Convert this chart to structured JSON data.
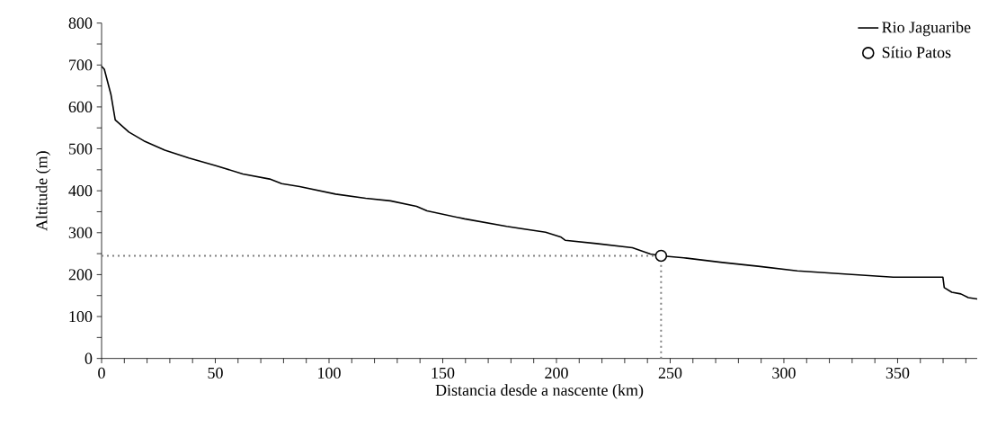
{
  "chart_data": {
    "type": "line",
    "xlabel": "Distancia desde a nascente (km)",
    "ylabel": "Altitude (m)",
    "xlim": [
      0,
      385
    ],
    "ylim": [
      0,
      800
    ],
    "xticks": [
      0,
      {
        "value": 10,
        "label": null
      },
      {
        "value": 20,
        "label": null
      },
      {
        "value": 30,
        "label": null
      },
      {
        "value": 40,
        "label": null
      },
      50,
      {
        "value": 60,
        "label": null
      },
      {
        "value": 70,
        "label": null
      },
      {
        "value": 80,
        "label": null
      },
      {
        "value": 90,
        "label": null
      },
      100,
      {
        "value": 110,
        "label": null
      },
      {
        "value": 120,
        "label": null
      },
      {
        "value": 130,
        "label": null
      },
      {
        "value": 140,
        "label": null
      },
      150,
      {
        "value": 160,
        "label": null
      },
      {
        "value": 170,
        "label": null
      },
      {
        "value": 180,
        "label": null
      },
      {
        "value": 190,
        "label": null
      },
      200,
      {
        "value": 210,
        "label": null
      },
      {
        "value": 220,
        "label": null
      },
      {
        "value": 230,
        "label": null
      },
      {
        "value": 240,
        "label": null
      },
      250,
      {
        "value": 260,
        "label": null
      },
      {
        "value": 270,
        "label": null
      },
      {
        "value": 280,
        "label": null
      },
      {
        "value": 290,
        "label": null
      },
      300,
      {
        "value": 310,
        "label": null
      },
      {
        "value": 320,
        "label": null
      },
      {
        "value": 330,
        "label": null
      },
      {
        "value": 340,
        "label": null
      },
      350,
      {
        "value": 360,
        "label": null
      },
      {
        "value": 370,
        "label": null
      },
      {
        "value": 380,
        "label": null
      }
    ],
    "yticks": [
      0,
      {
        "value": 50,
        "label": null
      },
      100,
      {
        "value": 150,
        "label": null
      },
      200,
      {
        "value": 250,
        "label": null
      },
      300,
      {
        "value": 350,
        "label": null
      },
      400,
      {
        "value": 450,
        "label": null
      },
      500,
      {
        "value": 550,
        "label": null
      },
      600,
      {
        "value": 650,
        "label": null
      },
      700,
      {
        "value": 750,
        "label": null
      },
      800
    ],
    "legend": "top right",
    "grid": false,
    "series": [
      {
        "name": "Rio Jaguaribe",
        "color": "#000000",
        "marker": "none",
        "line_style": "solid",
        "x": [
          0,
          1.2,
          4.1,
          6.0,
          12.0,
          18.6,
          27.8,
          38.4,
          50.2,
          62.1,
          73.9,
          79.2,
          87.1,
          102.9,
          116.1,
          127,
          138.5,
          143.1,
          159.6,
          178.1,
          195.2,
          201.8,
          203.8,
          217.6,
          233.4,
          241.3,
          246,
          256,
          272.9,
          288.7,
          305.9,
          328.3,
          348.1,
          369.9,
          370.5,
          373.8,
          377.8,
          381.1,
          385
        ],
        "values": [
          697,
          690,
          630,
          569,
          540,
          519,
          497,
          478,
          460,
          440,
          428,
          417,
          410,
          392,
          382,
          376,
          363,
          352,
          333,
          315,
          301,
          290,
          282,
          274,
          264,
          249,
          245,
          240,
          229,
          220,
          209,
          201,
          194,
          194,
          169,
          158,
          154,
          145,
          142
        ]
      },
      {
        "type": "line",
        "color": "#808080",
        "marker": "none",
        "line_style": "dotted",
        "x": [
          0,
          246
        ],
        "values": [
          245,
          245
        ]
      },
      {
        "type": "line",
        "color": "#808080",
        "marker": "none",
        "line_style": "dotted",
        "x": [
          246,
          246
        ],
        "values": [
          0,
          245
        ]
      },
      {
        "name": "Sítio Patos",
        "type": "scatter",
        "color": "#000000",
        "marker": "circle",
        "x": [
          246
        ],
        "values": [
          245
        ]
      }
    ]
  }
}
